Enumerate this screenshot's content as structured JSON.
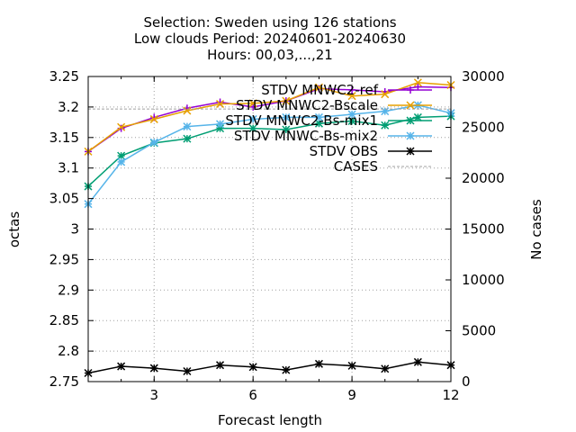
{
  "chart_data": {
    "type": "line",
    "title_lines": [
      "Selection: Sweden using   126 stations",
      "Low clouds   Period: 20240601-20240630",
      "Hours: 00,03,...,21"
    ],
    "xlabel": "Forecast length",
    "ylabel": "octas",
    "y2label": "No cases",
    "xlim": [
      1,
      12
    ],
    "ylim": [
      2.75,
      3.25
    ],
    "y2lim": [
      0,
      30000
    ],
    "x_ticks": [
      3,
      6,
      9,
      12
    ],
    "y_ticks": [
      "2.75",
      "2.8",
      "2.85",
      "2.9",
      "2.95",
      "3",
      "3.05",
      "3.1",
      "3.15",
      "3.2",
      "3.25"
    ],
    "y2_ticks": [
      "0",
      "5000",
      "10000",
      "15000",
      "20000",
      "25000",
      "30000"
    ],
    "grid": true,
    "legend_position": "top-right",
    "x": [
      1,
      2,
      3,
      4,
      5,
      6,
      7,
      8,
      9,
      10,
      11,
      12
    ],
    "series": [
      {
        "name": "STDV MNWC2-ref",
        "color": "#9400d3",
        "marker": "plus",
        "axis": "y",
        "values": [
          3.127,
          3.165,
          3.183,
          3.198,
          3.208,
          3.2,
          3.21,
          3.23,
          3.228,
          3.225,
          3.233,
          3.232
        ]
      },
      {
        "name": "STDV MNWC2-Bscale",
        "color": "#e69f00",
        "marker": "x",
        "axis": "y",
        "values": [
          3.127,
          3.167,
          3.18,
          3.194,
          3.205,
          3.206,
          3.21,
          3.232,
          3.218,
          3.221,
          3.24,
          3.236
        ]
      },
      {
        "name": "STDV MNWC2-Bs-mix1",
        "color": "#009e73",
        "marker": "star",
        "axis": "y",
        "values": [
          3.07,
          3.12,
          3.141,
          3.148,
          3.165,
          3.165,
          3.163,
          3.173,
          3.177,
          3.17,
          3.183,
          3.185
        ]
      },
      {
        "name": "STDV MNWC-Bs-mix2",
        "color": "#56b4e9",
        "marker": "star",
        "axis": "y",
        "values": [
          3.041,
          3.11,
          3.142,
          3.168,
          3.172,
          3.18,
          3.183,
          3.183,
          3.188,
          3.193,
          3.203,
          3.19
        ]
      },
      {
        "name": "STDV OBS",
        "color": "#000000",
        "marker": "star",
        "axis": "y",
        "values": [
          2.764,
          2.775,
          2.772,
          2.767,
          2.777,
          2.774,
          2.769,
          2.779,
          2.776,
          2.771,
          2.782,
          2.777
        ]
      },
      {
        "name": "CASES",
        "color": "#a0a0a0",
        "marker": "none",
        "axis": "y2",
        "dashed": true,
        "values": [
          26800,
          26800,
          26800,
          26800,
          26800,
          26800,
          26800,
          26800,
          26800,
          26800,
          26800,
          26800
        ]
      }
    ]
  }
}
